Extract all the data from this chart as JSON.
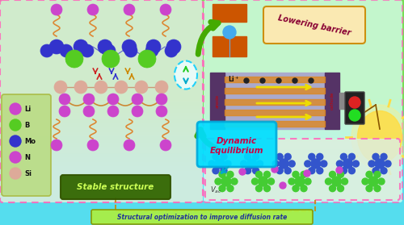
{
  "bg_top": "#77dd44",
  "bg_bottom": "#55ddee",
  "left_box_fill": "#ccff99",
  "left_box_edge": "#ff66bb",
  "right_box_fill": "#eeffee",
  "right_box_edge": "#ff66bb",
  "bottom_bar_fill": "#aaff66",
  "bottom_bar_edge": "#999900",
  "bottom_bar_text": "#223399",
  "bottom_label": "Structural optimization to improve diffusion rate",
  "stable_fill": "#336600",
  "stable_text": "#bbff44",
  "stable_label": "Stable structure",
  "dynamic_fill": "#00ddff",
  "dynamic_text": "#cc0044",
  "dynamic_label": "Dynamic\nEquilibrium",
  "lowering_fill": "#ffe8a0",
  "lowering_edge": "#cc8800",
  "lowering_text": "#880044",
  "lowering_label": "Lowering barrier",
  "legend_items": [
    "Li",
    "B",
    "Mo",
    "N",
    "Si"
  ],
  "legend_colors": [
    "#cc44cc",
    "#55cc22",
    "#3333cc",
    "#cc44cc",
    "#ddaa99"
  ],
  "sun_color": "#ffdd55",
  "li_color": "#cc44cc",
  "b_color": "#55cc22",
  "mo_color": "#3333cc",
  "n_color": "#cc44cc",
  "si_color": "#ddaa99",
  "spring_color": "#dd8833",
  "arrow_green": "#44aa00",
  "dashed_oval_color": "#00ccff"
}
